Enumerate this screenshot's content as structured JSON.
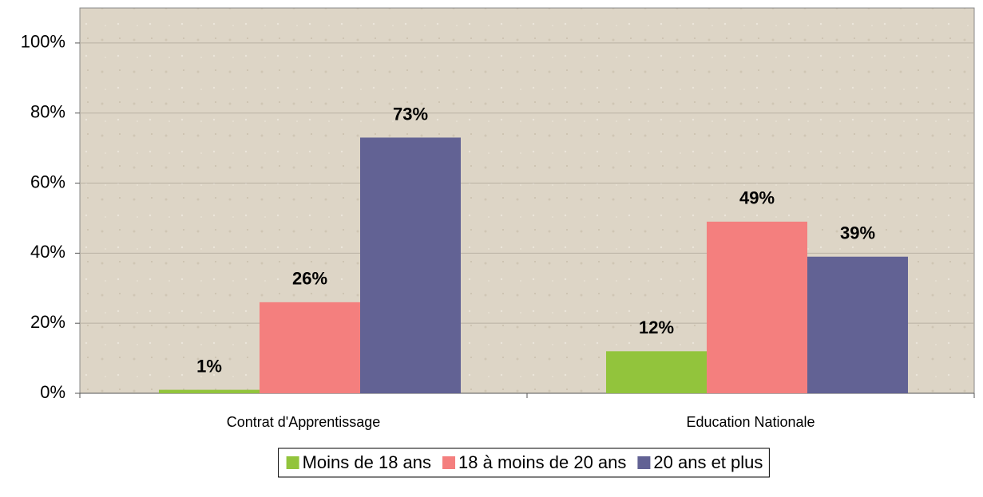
{
  "chart_data": {
    "type": "bar",
    "categories": [
      "Contrat d'Apprentissage",
      "Education Nationale"
    ],
    "series": [
      {
        "name": "Moins de 18 ans",
        "color": "#92c43c",
        "values": [
          1,
          12
        ],
        "value_labels": [
          "1%",
          "12%"
        ]
      },
      {
        "name": "18 à moins de 20 ans",
        "color": "#f47f7e",
        "values": [
          26,
          49
        ],
        "value_labels": [
          "26%",
          "49%"
        ]
      },
      {
        "name": "20 ans et plus",
        "color": "#626294",
        "values": [
          73,
          39
        ],
        "value_labels": [
          "73%",
          "39%"
        ]
      }
    ],
    "ylim": [
      0,
      110
    ],
    "yticks": [
      {
        "value": 0,
        "label": "0%"
      },
      {
        "value": 20,
        "label": "20%"
      },
      {
        "value": 40,
        "label": "40%"
      },
      {
        "value": 60,
        "label": "60%"
      },
      {
        "value": 80,
        "label": "80%"
      },
      {
        "value": 100,
        "label": "100%"
      }
    ],
    "grid": true,
    "legend": "bottom"
  }
}
